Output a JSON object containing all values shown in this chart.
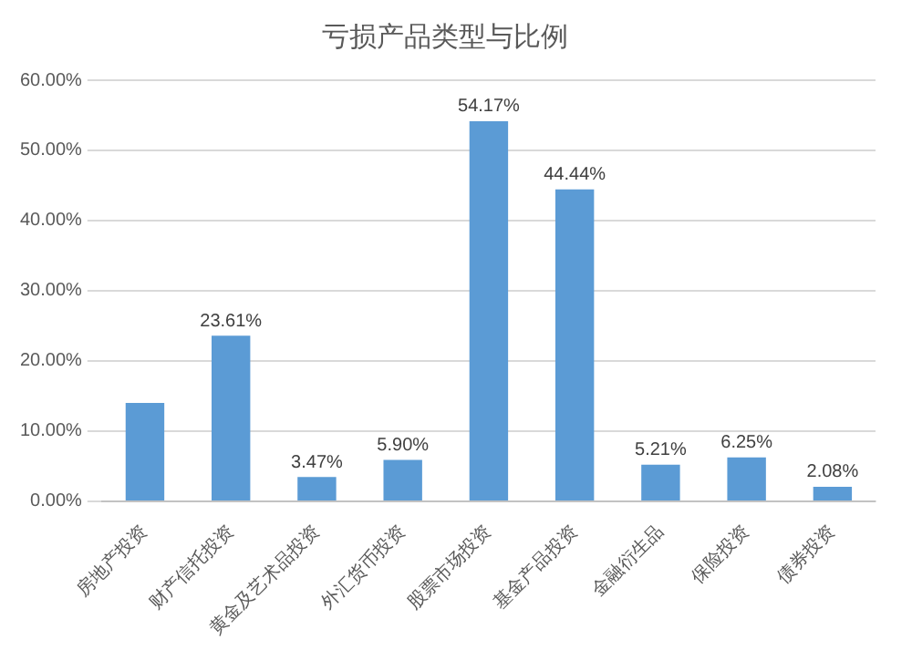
{
  "chart_data": {
    "type": "bar",
    "title": "亏损产品类型与比例",
    "categories": [
      "房地产投资",
      "财产信托投资",
      "黄金及艺术品投资",
      "外汇货币投资",
      "股票市场投资",
      "基金产品投资",
      "金融衍生品",
      "保险投资",
      "债券投资"
    ],
    "values": [
      14,
      23.61,
      3.47,
      5.9,
      54.17,
      44.44,
      5.21,
      6.25,
      2.08
    ],
    "value_labels": [
      null,
      "23.61%",
      "3.47%",
      "5.90%",
      "54.17%",
      "44.44%",
      "5.21%",
      "6.25%",
      "2.08%"
    ],
    "color": "#5b9bd5",
    "ylim": [
      0,
      60
    ],
    "yticks": [
      {
        "value": 0,
        "label": "0.00%"
      },
      {
        "value": 10,
        "label": "10.00%"
      },
      {
        "value": 20,
        "label": "20.00%"
      },
      {
        "value": 30,
        "label": "30.00%"
      },
      {
        "value": 40,
        "label": "40.00%"
      },
      {
        "value": 50,
        "label": "50.00%"
      },
      {
        "value": 60,
        "label": "60.00%"
      }
    ],
    "grid": "y",
    "legend": false
  }
}
